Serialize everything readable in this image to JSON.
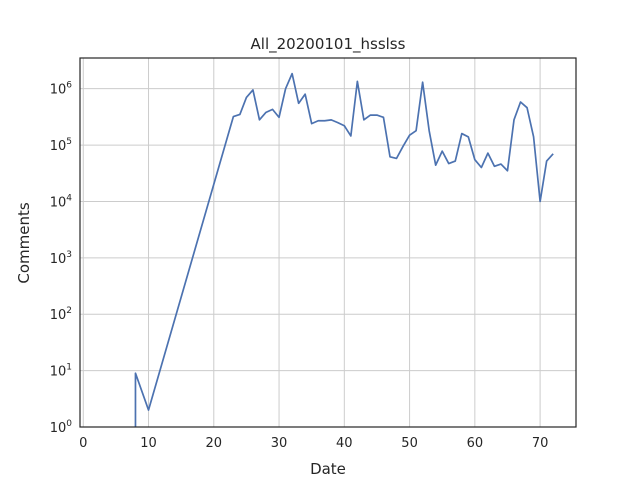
{
  "chart_data": {
    "type": "line",
    "title": "All_20200101_hsslss",
    "xlabel": "Date",
    "ylabel": "Comments",
    "x_scale": "linear",
    "y_scale": "log",
    "xlim": [
      -0.5,
      75.5
    ],
    "ylim": [
      1,
      3500000
    ],
    "x_ticks": [
      0,
      10,
      20,
      30,
      40,
      50,
      60,
      70
    ],
    "y_ticks": [
      1,
      10,
      100,
      1000,
      10000,
      100000,
      1000000
    ],
    "y_tick_labels": [
      {
        "base": "10",
        "exp": "0"
      },
      {
        "base": "10",
        "exp": "1"
      },
      {
        "base": "10",
        "exp": "2"
      },
      {
        "base": "10",
        "exp": "3"
      },
      {
        "base": "10",
        "exp": "4"
      },
      {
        "base": "10",
        "exp": "5"
      },
      {
        "base": "10",
        "exp": "6"
      }
    ],
    "grid": true,
    "line_color": "#4c72b0",
    "series": [
      {
        "x": [
          8,
          8,
          10,
          23,
          24,
          25,
          26,
          27,
          28,
          29,
          30,
          31,
          32,
          33,
          34,
          35,
          36,
          37,
          38,
          39,
          40,
          41,
          42,
          43,
          44,
          45,
          46,
          47,
          48,
          49,
          50,
          51,
          52,
          53,
          54,
          55,
          56,
          57,
          58,
          59,
          60,
          61,
          62,
          63,
          64,
          65,
          66,
          67,
          68,
          69,
          70,
          71,
          72
        ],
        "y": [
          1,
          9,
          2,
          320000,
          350000,
          700000,
          950000,
          280000,
          380000,
          430000,
          310000,
          1000000,
          1850000,
          550000,
          800000,
          240000,
          270000,
          270000,
          280000,
          250000,
          220000,
          145000,
          1350000,
          280000,
          340000,
          340000,
          310000,
          62000,
          58000,
          95000,
          150000,
          180000,
          1300000,
          180000,
          44000,
          78000,
          47000,
          52000,
          160000,
          140000,
          55000,
          40000,
          72000,
          42000,
          46000,
          35000,
          280000,
          580000,
          460000,
          140000,
          10000,
          52000,
          70000
        ]
      }
    ]
  }
}
